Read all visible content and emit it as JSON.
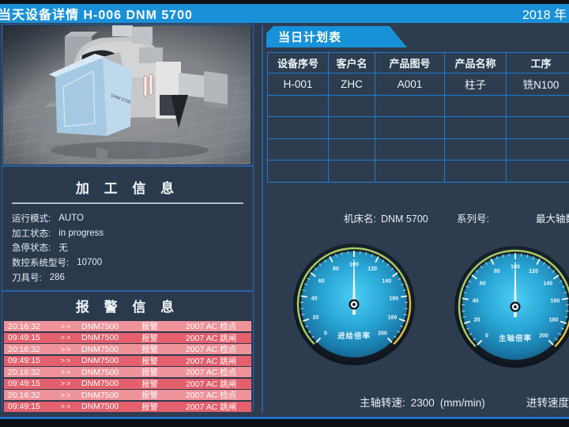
{
  "header": {
    "title": "当天设备详情  H-006   DNM 5700",
    "year": "2018 年"
  },
  "machine_view": {
    "model_label": "DNM 5700"
  },
  "processing_info": {
    "title": "加 工 信 息",
    "fields": [
      {
        "label": "运行模式:",
        "value": "AUTO"
      },
      {
        "label": "加工状态:",
        "value": "in progress"
      },
      {
        "label": "急停状态:",
        "value": "无"
      },
      {
        "label": "数控系统型号:",
        "value": "10700"
      },
      {
        "label": "刀具号:",
        "value": "286"
      }
    ]
  },
  "alarm_info": {
    "title": "报 警 信 息",
    "rows": [
      {
        "time": "20:16:32",
        "sep": ">>",
        "device": "DNM7500",
        "type": "报警",
        "message": "2007 AC 检点",
        "tone": "light"
      },
      {
        "time": "09:49:15",
        "sep": ">>",
        "device": "DNM7500",
        "type": "报警",
        "message": "2007 AC 跳闸",
        "tone": "dark"
      },
      {
        "time": "20:16:32",
        "sep": ">>",
        "device": "DNM7500",
        "type": "报警",
        "message": "2007 AC 检点",
        "tone": "light"
      },
      {
        "time": "09:49:15",
        "sep": ">>",
        "device": "DNM7500",
        "type": "报警",
        "message": "2007 AC 跳闸",
        "tone": "dark"
      },
      {
        "time": "20:16:32",
        "sep": ">>",
        "device": "DNM7500",
        "type": "报警",
        "message": "2007 AC 检点",
        "tone": "light"
      },
      {
        "time": "09:49:15",
        "sep": ">>",
        "device": "DNM7500",
        "type": "报警",
        "message": "2007 AC 跳闸",
        "tone": "dark"
      },
      {
        "time": "20:16:32",
        "sep": ">>",
        "device": "DNM7500",
        "type": "报警",
        "message": "2007 AC 检点",
        "tone": "light"
      },
      {
        "time": "09:49:15",
        "sep": ">>",
        "device": "DNM7500",
        "type": "报警",
        "message": "2007 AC 跳闸",
        "tone": "dark"
      }
    ]
  },
  "plan_table": {
    "tab": "当日计划表",
    "columns": [
      "设备序号",
      "客户名",
      "产品图号",
      "产品名称",
      "工序"
    ],
    "rows": [
      [
        "H-001",
        "ZHC",
        "A001",
        "柱子",
        "铣N100"
      ],
      [
        "",
        "",
        "",
        "",
        ""
      ],
      [
        "",
        "",
        "",
        "",
        ""
      ],
      [
        "",
        "",
        "",
        "",
        ""
      ],
      [
        "",
        "",
        "",
        "",
        ""
      ]
    ]
  },
  "machine_meta": {
    "name_label": "机床名:",
    "name_value": "DNM 5700",
    "serial_label": "系列号:",
    "serial_value": "",
    "max_axes_label": "最大轴数"
  },
  "gauges": [
    {
      "name": "feed-override",
      "label": "进给倍率",
      "min": 0,
      "max": 200,
      "major_step": 20,
      "minor_step": 5,
      "value": 100,
      "arc_segments": [
        {
          "from": 0,
          "to": 155,
          "color": "#a9d063"
        },
        {
          "from": 155,
          "to": 200,
          "color": "#e5c23e"
        }
      ]
    },
    {
      "name": "spindle-override",
      "label": "主轴倍率",
      "min": 0,
      "max": 200,
      "major_step": 20,
      "minor_step": 5,
      "value": 100,
      "arc_segments": [
        {
          "from": 0,
          "to": 155,
          "color": "#a9d063"
        },
        {
          "from": 155,
          "to": 200,
          "color": "#e5c23e"
        }
      ]
    }
  ],
  "footer_stats": {
    "spindle_label": "主轴转速:",
    "spindle_value": "2300",
    "spindle_unit": "(mm/min)",
    "feed_label": "进转速度"
  },
  "colors": {
    "header_blue": "#1a90d8",
    "panel_border": "#2766ae",
    "table_border": "#1b7cd0",
    "alarm_light": "#ef939b",
    "alarm_dark": "#e4606d",
    "gauge_face": "#2fb7e3",
    "background": "#2e3c50"
  }
}
